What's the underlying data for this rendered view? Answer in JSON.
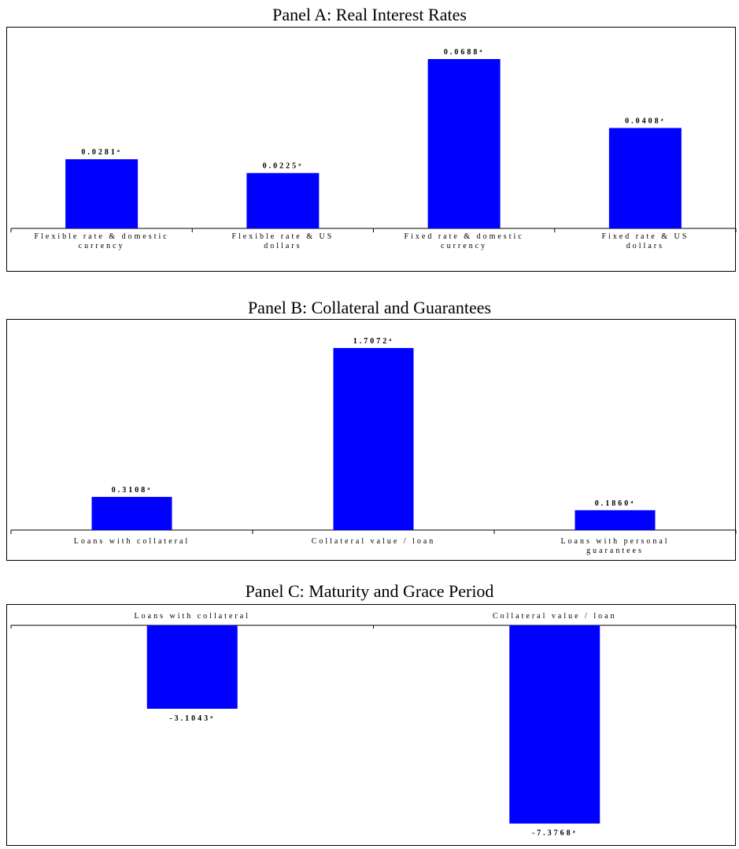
{
  "chart_data": [
    {
      "type": "bar",
      "title": "Panel A: Real Interest Rates",
      "categories": [
        [
          "Flexible rate & domestic",
          "currency"
        ],
        [
          "Flexible rate & US",
          "dollars"
        ],
        [
          "Fixed rate & domestic",
          "currency"
        ],
        [
          "Fixed rate & US",
          "dollars"
        ]
      ],
      "values": [
        0.0281,
        0.0225,
        0.0688,
        0.0408
      ],
      "value_labels": [
        "0.0281",
        "0.0225",
        "0.0688",
        "0.0408"
      ],
      "significance_marker": "a",
      "ylim": [
        0,
        0.072
      ],
      "color": "#0000ff",
      "grid": false
    },
    {
      "type": "bar",
      "title": "Panel B: Collateral and Guarantees",
      "categories": [
        [
          "Loans with collateral"
        ],
        [
          "Collateral value / loan"
        ],
        [
          "Loans with personal",
          "guarantees"
        ]
      ],
      "values": [
        0.3108,
        1.7072,
        0.186
      ],
      "value_labels": [
        "0.3108",
        "1.7072",
        "0.1860"
      ],
      "significance_marker": "a",
      "ylim": [
        0,
        1.78
      ],
      "color": "#0000ff",
      "grid": false
    },
    {
      "type": "bar",
      "title": "Panel C: Maturity and Grace Period",
      "categories": [
        [
          "Loans with collateral"
        ],
        [
          "Collateral value / loan"
        ]
      ],
      "values": [
        -3.1043,
        -7.3768
      ],
      "value_labels": [
        "-3.1043",
        "-7.3768"
      ],
      "significance_marker": "a",
      "ylim": [
        -8.5,
        0
      ],
      "color": "#0000ff",
      "grid": false
    }
  ]
}
